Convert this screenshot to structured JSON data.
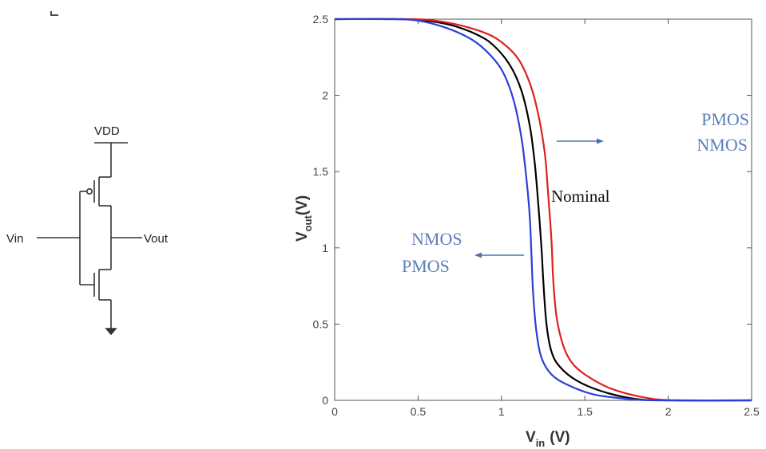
{
  "schematic": {
    "vdd_label": "VDD",
    "vin_label": "Vin",
    "vout_label": "Vout"
  },
  "chart_data": {
    "type": "line",
    "xlabel_main": "V",
    "xlabel_sub": "in",
    "xlabel_unit": "(V)",
    "ylabel_main": "V",
    "ylabel_sub": "out",
    "ylabel_unit": "(V)",
    "xlim": [
      0,
      2.5
    ],
    "ylim": [
      0,
      2.5
    ],
    "xticks": [
      "0",
      "0.5",
      "1",
      "1.5",
      "2",
      "2.5"
    ],
    "yticks": [
      "0",
      "0.5",
      "1",
      "1.5",
      "2",
      "2.5"
    ],
    "grid": false,
    "series": [
      {
        "name": "Nominal",
        "color": "#000000",
        "points": [
          [
            0,
            2.5
          ],
          [
            0.4,
            2.5
          ],
          [
            0.55,
            2.49
          ],
          [
            0.7,
            2.46
          ],
          [
            0.85,
            2.4
          ],
          [
            0.95,
            2.33
          ],
          [
            1.05,
            2.2
          ],
          [
            1.12,
            2.03
          ],
          [
            1.17,
            1.8
          ],
          [
            1.2,
            1.55
          ],
          [
            1.22,
            1.3
          ],
          [
            1.24,
            1.0
          ],
          [
            1.25,
            0.8
          ],
          [
            1.27,
            0.5
          ],
          [
            1.3,
            0.32
          ],
          [
            1.35,
            0.22
          ],
          [
            1.45,
            0.13
          ],
          [
            1.6,
            0.06
          ],
          [
            1.8,
            0.01
          ],
          [
            2.0,
            0.0
          ],
          [
            2.5,
            0.0
          ]
        ]
      },
      {
        "color": "#e02020",
        "points": [
          [
            0,
            2.5
          ],
          [
            0.45,
            2.5
          ],
          [
            0.6,
            2.49
          ],
          [
            0.75,
            2.46
          ],
          [
            0.9,
            2.41
          ],
          [
            1.0,
            2.35
          ],
          [
            1.1,
            2.24
          ],
          [
            1.17,
            2.08
          ],
          [
            1.22,
            1.88
          ],
          [
            1.26,
            1.62
          ],
          [
            1.28,
            1.35
          ],
          [
            1.3,
            1.05
          ],
          [
            1.31,
            0.8
          ],
          [
            1.33,
            0.55
          ],
          [
            1.37,
            0.36
          ],
          [
            1.42,
            0.25
          ],
          [
            1.5,
            0.17
          ],
          [
            1.65,
            0.08
          ],
          [
            1.85,
            0.02
          ],
          [
            2.05,
            0.0
          ],
          [
            2.5,
            0.0
          ]
        ]
      },
      {
        "color": "#2a3fd8",
        "points": [
          [
            0,
            2.5
          ],
          [
            0.35,
            2.5
          ],
          [
            0.5,
            2.49
          ],
          [
            0.65,
            2.45
          ],
          [
            0.8,
            2.38
          ],
          [
            0.9,
            2.3
          ],
          [
            1.0,
            2.17
          ],
          [
            1.07,
            1.98
          ],
          [
            1.12,
            1.72
          ],
          [
            1.15,
            1.45
          ],
          [
            1.17,
            1.2
          ],
          [
            1.18,
            0.95
          ],
          [
            1.19,
            0.7
          ],
          [
            1.21,
            0.45
          ],
          [
            1.24,
            0.28
          ],
          [
            1.3,
            0.17
          ],
          [
            1.4,
            0.1
          ],
          [
            1.55,
            0.04
          ],
          [
            1.75,
            0.01
          ],
          [
            1.95,
            0.0
          ],
          [
            2.5,
            0.0
          ]
        ]
      }
    ],
    "annotations": {
      "nominal": "Nominal",
      "right_line1": "PMOS",
      "right_line2": "NMOS",
      "left_line1": "NMOS",
      "left_line2": "PMOS"
    }
  }
}
